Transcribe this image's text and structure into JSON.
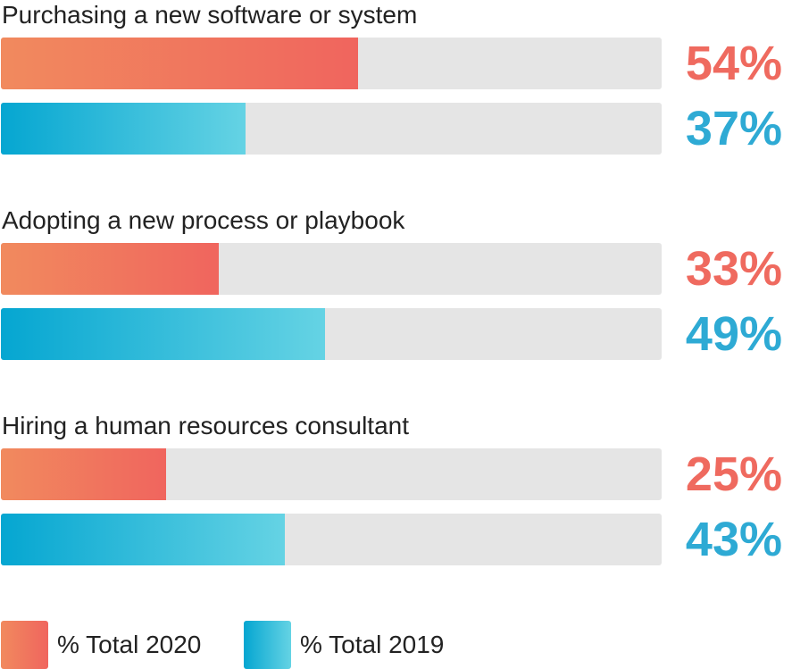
{
  "chart_data": {
    "type": "bar",
    "orientation": "horizontal",
    "categories": [
      "Purchasing a new software or system",
      "Adopting a new process or playbook",
      "Hiring a human resources consultant"
    ],
    "series": [
      {
        "name": "% Total 2020",
        "values": [
          54,
          33,
          25
        ],
        "labels": [
          "54%",
          "33%",
          "25%"
        ],
        "color": "#ef6a5f"
      },
      {
        "name": "% Total 2019",
        "values": [
          37,
          49,
          43
        ],
        "labels": [
          "37%",
          "49%",
          "43%"
        ],
        "color": "#2eaad4"
      }
    ],
    "xlim": [
      0,
      100
    ],
    "grid": false,
    "legend": "bottom-left"
  }
}
